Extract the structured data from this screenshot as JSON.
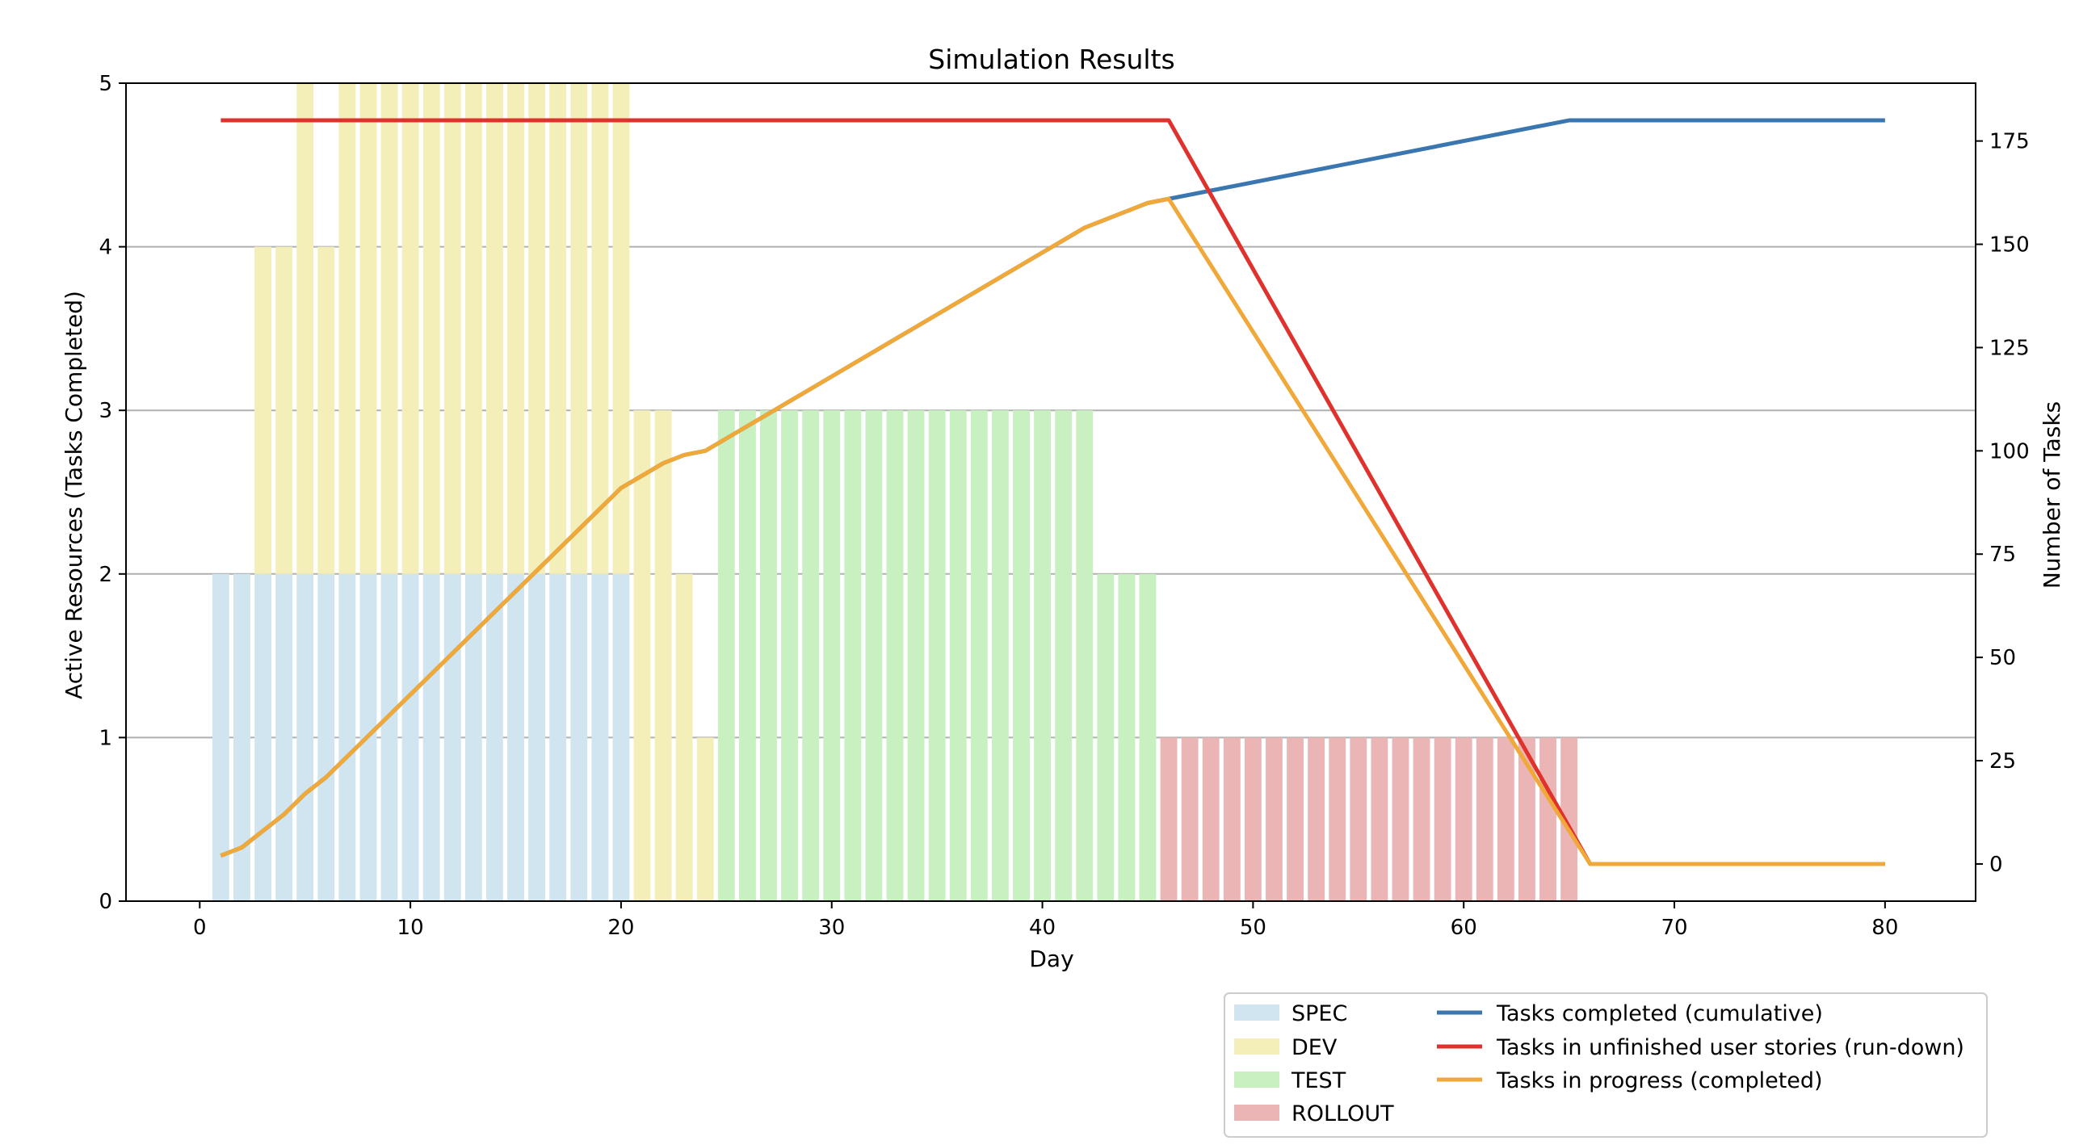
{
  "chart_data": {
    "type": "bar",
    "title": "Simulation Results",
    "xlabel": "Day",
    "ylabel": "Active Resources (Tasks Completed)",
    "y2label": "Number of Tasks",
    "xlim": [
      -3.5,
      84.3
    ],
    "ylim": [
      0,
      5
    ],
    "y2lim": [
      -9,
      189
    ],
    "x_ticks": [
      0,
      10,
      20,
      30,
      40,
      50,
      60,
      70,
      80
    ],
    "y_ticks": [
      0,
      1,
      2,
      3,
      4,
      5
    ],
    "y2_ticks": [
      0,
      25,
      50,
      75,
      100,
      125,
      150,
      175
    ],
    "grid": "y",
    "legend_position": "bottom-right, below axes",
    "bar_width": 0.8,
    "bar_series": [
      {
        "name": "SPEC",
        "color": "#d1e5f0",
        "x": [
          1,
          2,
          3,
          4,
          5,
          6,
          7,
          8,
          9,
          10,
          11,
          12,
          13,
          14,
          15,
          16,
          17,
          18,
          19,
          20
        ],
        "values": [
          2,
          2,
          2,
          2,
          2,
          2,
          2,
          2,
          2,
          2,
          2,
          2,
          2,
          2,
          2,
          2,
          2,
          2,
          2,
          2
        ]
      },
      {
        "name": "DEV",
        "color": "#f4eeb8",
        "x": [
          3,
          4,
          5,
          6,
          7,
          8,
          9,
          10,
          11,
          12,
          13,
          14,
          15,
          16,
          17,
          18,
          19,
          20,
          21,
          22,
          23,
          24
        ],
        "values": [
          2,
          2,
          3,
          2,
          3,
          3,
          3,
          3,
          3,
          3,
          3,
          3,
          3,
          3,
          3,
          3,
          3,
          3,
          3,
          3,
          2,
          1
        ]
      },
      {
        "name": "TEST",
        "color": "#c8f0c0",
        "x": [
          25,
          26,
          27,
          28,
          29,
          30,
          31,
          32,
          33,
          34,
          35,
          36,
          37,
          38,
          39,
          40,
          41,
          42,
          43,
          44,
          45
        ],
        "values": [
          3,
          3,
          3,
          3,
          3,
          3,
          3,
          3,
          3,
          3,
          3,
          3,
          3,
          3,
          3,
          3,
          3,
          3,
          2,
          2,
          2
        ]
      },
      {
        "name": "ROLLOUT",
        "color": "#ebb5b5",
        "x": [
          46,
          47,
          48,
          49,
          50,
          51,
          52,
          53,
          54,
          55,
          56,
          57,
          58,
          59,
          60,
          61,
          62,
          63,
          64,
          65
        ],
        "values": [
          1,
          1,
          1,
          1,
          1,
          1,
          1,
          1,
          1,
          1,
          1,
          1,
          1,
          1,
          1,
          1,
          1,
          1,
          1,
          1
        ]
      }
    ],
    "line_series": [
      {
        "name": "Tasks completed (cumulative)",
        "color": "#3a76b0",
        "axis": "right",
        "x": [
          1,
          2,
          3,
          4,
          5,
          6,
          7,
          8,
          9,
          10,
          11,
          12,
          13,
          14,
          15,
          16,
          17,
          18,
          19,
          20,
          21,
          22,
          23,
          24,
          25,
          26,
          27,
          28,
          29,
          30,
          31,
          32,
          33,
          34,
          35,
          36,
          37,
          38,
          39,
          40,
          41,
          42,
          43,
          44,
          45,
          46,
          65,
          80
        ],
        "values": [
          2,
          4,
          8,
          12,
          17,
          21,
          26,
          31,
          36,
          41,
          46,
          51,
          56,
          61,
          66,
          71,
          76,
          81,
          86,
          91,
          94,
          97,
          99,
          100,
          103,
          106,
          109,
          112,
          115,
          118,
          121,
          124,
          127,
          130,
          133,
          136,
          139,
          142,
          145,
          148,
          151,
          154,
          156,
          158,
          160,
          161,
          180,
          180
        ]
      },
      {
        "name": "Tasks in unfinished user stories (run-down)",
        "color": "#e0322d",
        "axis": "right",
        "x": [
          1,
          46,
          66,
          80
        ],
        "values": [
          180,
          180,
          0,
          0
        ]
      },
      {
        "name": "Tasks in progress (completed)",
        "color": "#f0a838",
        "axis": "right",
        "x": [
          1,
          2,
          3,
          4,
          5,
          6,
          7,
          8,
          9,
          10,
          11,
          12,
          13,
          14,
          15,
          16,
          17,
          18,
          19,
          20,
          21,
          22,
          23,
          24,
          25,
          26,
          27,
          28,
          29,
          30,
          31,
          32,
          33,
          34,
          35,
          36,
          37,
          38,
          39,
          40,
          41,
          42,
          43,
          44,
          45,
          46,
          66,
          80
        ],
        "values": [
          2,
          4,
          8,
          12,
          17,
          21,
          26,
          31,
          36,
          41,
          46,
          51,
          56,
          61,
          66,
          71,
          76,
          81,
          86,
          91,
          94,
          97,
          99,
          100,
          103,
          106,
          109,
          112,
          115,
          118,
          121,
          124,
          127,
          130,
          133,
          136,
          139,
          142,
          145,
          148,
          151,
          154,
          156,
          158,
          160,
          161,
          0,
          0
        ]
      }
    ]
  }
}
